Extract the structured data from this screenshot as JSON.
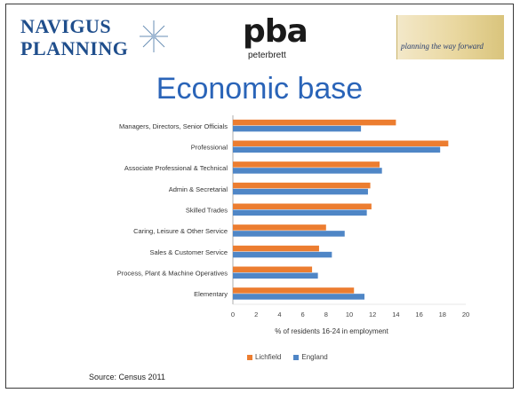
{
  "header": {
    "logo_left_line1": "NAVIGUS",
    "logo_left_line2": "PLANNING",
    "logo_mid_mark": "pba",
    "logo_mid_sub": "peterbrett",
    "logo_right_tagline": "planning the way forward"
  },
  "slide_title": "Economic base",
  "source": "Source: Census 2011",
  "colors": {
    "lichfield": "#ec7d30",
    "england": "#4f86c6",
    "title": "#2a64b8",
    "border": "#3a3a3a"
  },
  "chart_data": {
    "type": "bar",
    "orientation": "horizontal",
    "categories": [
      "Managers, Directors, Senior Officials",
      "Professional",
      "Associate Professional & Technical",
      "Admin & Secretarial",
      "Skilled Trades",
      "Caring, Leisure & Other Service",
      "Sales & Customer Service",
      "Process, Plant & Machine Operatives",
      "Elementary"
    ],
    "series": [
      {
        "name": "Lichfield",
        "values": [
          14.0,
          18.5,
          12.6,
          11.8,
          11.9,
          8.0,
          7.4,
          6.8,
          10.4
        ]
      },
      {
        "name": "England",
        "values": [
          11.0,
          17.8,
          12.8,
          11.6,
          11.5,
          9.6,
          8.5,
          7.3,
          11.3
        ]
      }
    ],
    "xlabel": "% of residents 16-24 in employment",
    "xlim": [
      0,
      20
    ],
    "xticks": [
      "0",
      "2",
      "4",
      "6",
      "8",
      "10",
      "12",
      "14",
      "16",
      "18",
      "20"
    ],
    "grid": false,
    "legend": "bottom"
  }
}
